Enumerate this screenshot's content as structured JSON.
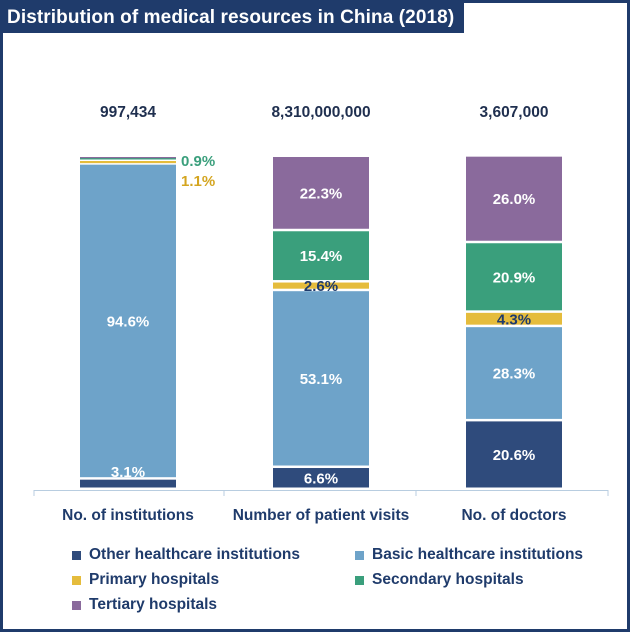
{
  "chart_data": {
    "type": "bar",
    "stacked": true,
    "normalized": true,
    "title": "Distribution of medical resources in China (2018)",
    "categories": [
      "No. of institutions",
      "Number of patient visits",
      "No. of doctors"
    ],
    "totals": [
      "997,434",
      "8,310,000,000",
      "3,607,000"
    ],
    "series": [
      {
        "name": "Other healthcare institutions",
        "color": "#2f4b7c",
        "values": [
          3.1,
          6.6,
          20.6
        ],
        "labels": [
          "",
          "6.6%",
          "20.6%"
        ]
      },
      {
        "name": "Basic healthcare institutions",
        "color": "#6ea3c9",
        "values": [
          94.6,
          53.1,
          28.3
        ],
        "labels": [
          "94.6%",
          "53.1%",
          "28.3%"
        ]
      },
      {
        "name": "Primary hospitals",
        "color": "#e5bc3c",
        "values": [
          1.1,
          2.6,
          4.3
        ],
        "labels": [
          "",
          "2.6%",
          "4.3%"
        ]
      },
      {
        "name": "Secondary hospitals",
        "color": "#3a9f7c",
        "values": [
          0.9,
          15.4,
          20.9
        ],
        "labels": [
          "",
          "15.4%",
          "20.9%"
        ]
      },
      {
        "name": "Tertiary hospitals",
        "color": "#8a6a9c",
        "values": [
          0.3,
          22.3,
          26.0
        ],
        "labels": [
          "",
          "22.3%",
          "26.0%"
        ]
      }
    ],
    "annotations": [
      {
        "text": "3.1%",
        "category": 0,
        "series": 0,
        "color": "#ffffff"
      },
      {
        "text": "1.1%",
        "category": 0,
        "series": 2,
        "color": "#d4a520"
      },
      {
        "text": "0.9%",
        "category": 0,
        "series": 3,
        "color": "#3a9f7c"
      }
    ],
    "ylim": [
      0,
      100
    ],
    "grid": false,
    "legend_position": "bottom"
  }
}
